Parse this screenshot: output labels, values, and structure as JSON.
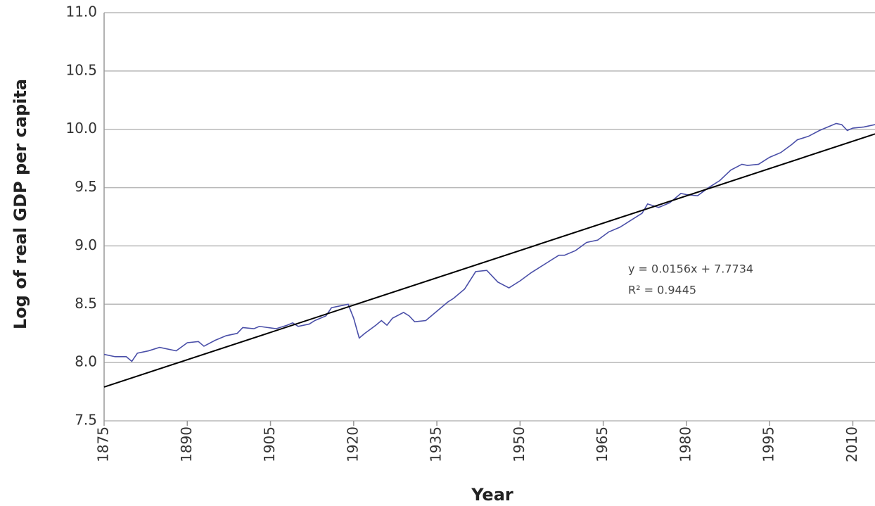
{
  "chart_data": {
    "type": "line",
    "xlabel": "Year",
    "ylabel": "Log of real GDP per capita",
    "xlim": [
      1875,
      2014
    ],
    "ylim": [
      7.5,
      11.0
    ],
    "xticks": [
      1875,
      1890,
      1905,
      1920,
      1935,
      1950,
      1965,
      1980,
      1995,
      2010
    ],
    "yticks": [
      7.5,
      {
        "value": 8.0,
        "label": "8.0"
      },
      8.5,
      {
        "value": 9.0,
        "label": "9.0"
      },
      9.5,
      {
        "value": 10.0,
        "label": "10.0"
      },
      10.5,
      {
        "value": 11.0,
        "label": "11.0"
      }
    ],
    "grid": true,
    "series": [
      {
        "color": "#4a4fa8",
        "x": [
          1875,
          1877,
          1879,
          1880,
          1881,
          1883,
          1885,
          1888,
          1890,
          1892,
          1893,
          1895,
          1897,
          1899,
          1900,
          1902,
          1903,
          1906,
          1908,
          1909,
          1910,
          1912,
          1913,
          1915,
          1916,
          1918,
          1919,
          1920,
          1921,
          1922,
          1924,
          1925,
          1926,
          1927,
          1929,
          1930,
          1931,
          1933,
          1935,
          1937,
          1938,
          1940,
          1942,
          1944,
          1946,
          1948,
          1950,
          1952,
          1953,
          1955,
          1957,
          1958,
          1960,
          1962,
          1964,
          1966,
          1968,
          1970,
          1972,
          1973,
          1975,
          1977,
          1979,
          1980,
          1982,
          1984,
          1986,
          1988,
          1990,
          1991,
          1993,
          1995,
          1997,
          1999,
          2000,
          2002,
          2004,
          2006,
          2007,
          2008,
          2009,
          2010,
          2012,
          2014
        ],
        "values": [
          8.07,
          8.05,
          8.05,
          8.01,
          8.08,
          8.1,
          8.13,
          8.1,
          8.17,
          8.18,
          8.14,
          8.19,
          8.23,
          8.25,
          8.3,
          8.29,
          8.31,
          8.29,
          8.32,
          8.34,
          8.31,
          8.33,
          8.36,
          8.4,
          8.47,
          8.49,
          8.5,
          8.38,
          8.21,
          8.25,
          8.32,
          8.36,
          8.32,
          8.38,
          8.43,
          8.4,
          8.35,
          8.36,
          8.44,
          8.52,
          8.55,
          8.63,
          8.78,
          8.79,
          8.69,
          8.64,
          8.7,
          8.77,
          8.8,
          8.86,
          8.92,
          8.92,
          8.96,
          9.03,
          9.05,
          9.12,
          9.16,
          9.22,
          9.28,
          9.36,
          9.33,
          9.37,
          9.45,
          9.44,
          9.43,
          9.5,
          9.56,
          9.65,
          9.7,
          9.69,
          9.7,
          9.76,
          9.8,
          9.87,
          9.91,
          9.94,
          9.99,
          10.03,
          10.05,
          10.04,
          9.99,
          10.01,
          10.02,
          10.04
        ]
      },
      {
        "color": "#000000",
        "x": [
          1875,
          2014
        ],
        "values": [
          7.79,
          9.96
        ]
      }
    ],
    "annotations": [
      "y = 0.0156x + 7.7734",
      "R² = 0.9445"
    ]
  }
}
